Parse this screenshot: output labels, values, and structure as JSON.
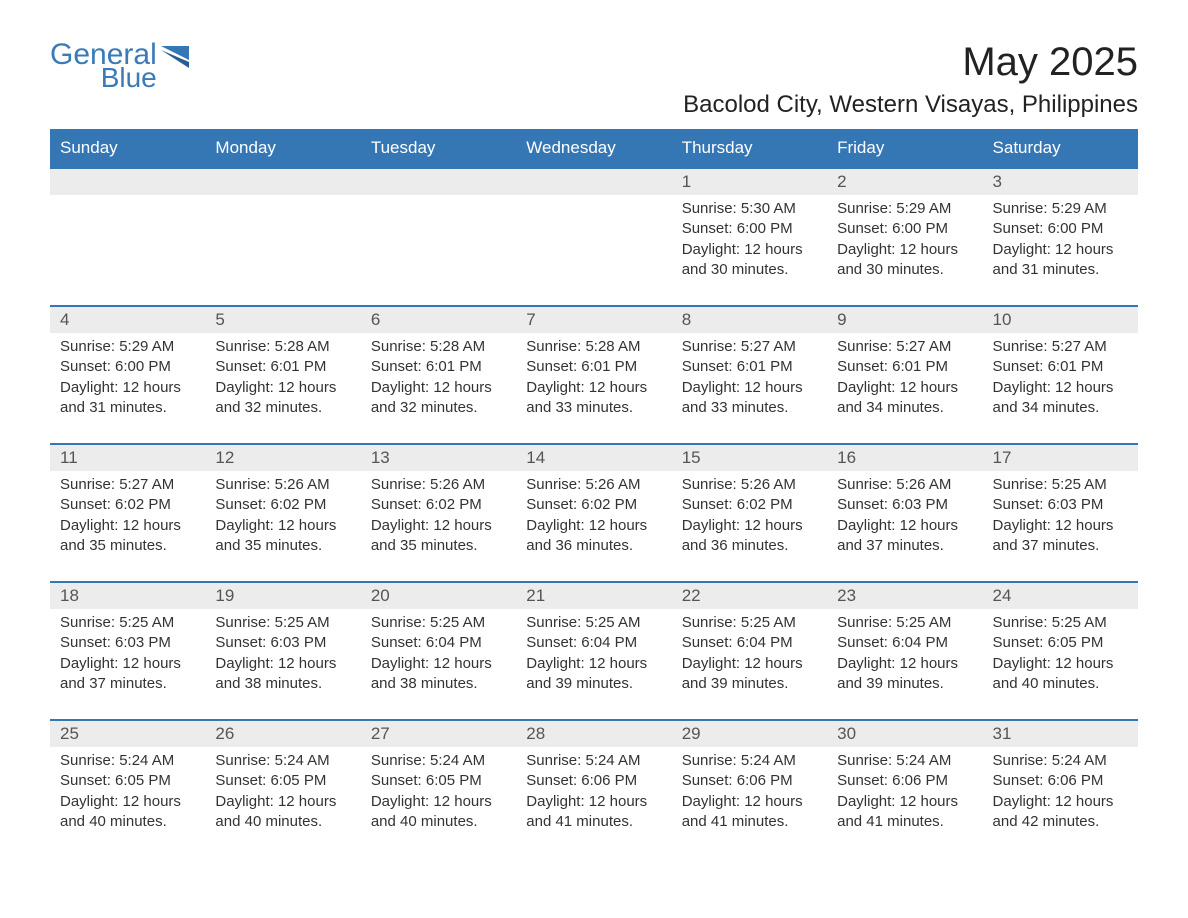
{
  "logo": {
    "main": "General",
    "sub": "Blue"
  },
  "colors": {
    "header_bg": "#3576b5",
    "header_text": "#ffffff",
    "daynum_bg": "#ececec",
    "daynum_border": "#3576b5",
    "body_text": "#333333",
    "logo_color": "#3a7ab8"
  },
  "title": {
    "month": "May 2025",
    "location": "Bacolod City, Western Visayas, Philippines"
  },
  "weekdays": [
    "Sunday",
    "Monday",
    "Tuesday",
    "Wednesday",
    "Thursday",
    "Friday",
    "Saturday"
  ],
  "weeks": [
    [
      null,
      null,
      null,
      null,
      {
        "n": "1",
        "sunrise": "Sunrise: 5:30 AM",
        "sunset": "Sunset: 6:00 PM",
        "daylight": "Daylight: 12 hours and 30 minutes."
      },
      {
        "n": "2",
        "sunrise": "Sunrise: 5:29 AM",
        "sunset": "Sunset: 6:00 PM",
        "daylight": "Daylight: 12 hours and 30 minutes."
      },
      {
        "n": "3",
        "sunrise": "Sunrise: 5:29 AM",
        "sunset": "Sunset: 6:00 PM",
        "daylight": "Daylight: 12 hours and 31 minutes."
      }
    ],
    [
      {
        "n": "4",
        "sunrise": "Sunrise: 5:29 AM",
        "sunset": "Sunset: 6:00 PM",
        "daylight": "Daylight: 12 hours and 31 minutes."
      },
      {
        "n": "5",
        "sunrise": "Sunrise: 5:28 AM",
        "sunset": "Sunset: 6:01 PM",
        "daylight": "Daylight: 12 hours and 32 minutes."
      },
      {
        "n": "6",
        "sunrise": "Sunrise: 5:28 AM",
        "sunset": "Sunset: 6:01 PM",
        "daylight": "Daylight: 12 hours and 32 minutes."
      },
      {
        "n": "7",
        "sunrise": "Sunrise: 5:28 AM",
        "sunset": "Sunset: 6:01 PM",
        "daylight": "Daylight: 12 hours and 33 minutes."
      },
      {
        "n": "8",
        "sunrise": "Sunrise: 5:27 AM",
        "sunset": "Sunset: 6:01 PM",
        "daylight": "Daylight: 12 hours and 33 minutes."
      },
      {
        "n": "9",
        "sunrise": "Sunrise: 5:27 AM",
        "sunset": "Sunset: 6:01 PM",
        "daylight": "Daylight: 12 hours and 34 minutes."
      },
      {
        "n": "10",
        "sunrise": "Sunrise: 5:27 AM",
        "sunset": "Sunset: 6:01 PM",
        "daylight": "Daylight: 12 hours and 34 minutes."
      }
    ],
    [
      {
        "n": "11",
        "sunrise": "Sunrise: 5:27 AM",
        "sunset": "Sunset: 6:02 PM",
        "daylight": "Daylight: 12 hours and 35 minutes."
      },
      {
        "n": "12",
        "sunrise": "Sunrise: 5:26 AM",
        "sunset": "Sunset: 6:02 PM",
        "daylight": "Daylight: 12 hours and 35 minutes."
      },
      {
        "n": "13",
        "sunrise": "Sunrise: 5:26 AM",
        "sunset": "Sunset: 6:02 PM",
        "daylight": "Daylight: 12 hours and 35 minutes."
      },
      {
        "n": "14",
        "sunrise": "Sunrise: 5:26 AM",
        "sunset": "Sunset: 6:02 PM",
        "daylight": "Daylight: 12 hours and 36 minutes."
      },
      {
        "n": "15",
        "sunrise": "Sunrise: 5:26 AM",
        "sunset": "Sunset: 6:02 PM",
        "daylight": "Daylight: 12 hours and 36 minutes."
      },
      {
        "n": "16",
        "sunrise": "Sunrise: 5:26 AM",
        "sunset": "Sunset: 6:03 PM",
        "daylight": "Daylight: 12 hours and 37 minutes."
      },
      {
        "n": "17",
        "sunrise": "Sunrise: 5:25 AM",
        "sunset": "Sunset: 6:03 PM",
        "daylight": "Daylight: 12 hours and 37 minutes."
      }
    ],
    [
      {
        "n": "18",
        "sunrise": "Sunrise: 5:25 AM",
        "sunset": "Sunset: 6:03 PM",
        "daylight": "Daylight: 12 hours and 37 minutes."
      },
      {
        "n": "19",
        "sunrise": "Sunrise: 5:25 AM",
        "sunset": "Sunset: 6:03 PM",
        "daylight": "Daylight: 12 hours and 38 minutes."
      },
      {
        "n": "20",
        "sunrise": "Sunrise: 5:25 AM",
        "sunset": "Sunset: 6:04 PM",
        "daylight": "Daylight: 12 hours and 38 minutes."
      },
      {
        "n": "21",
        "sunrise": "Sunrise: 5:25 AM",
        "sunset": "Sunset: 6:04 PM",
        "daylight": "Daylight: 12 hours and 39 minutes."
      },
      {
        "n": "22",
        "sunrise": "Sunrise: 5:25 AM",
        "sunset": "Sunset: 6:04 PM",
        "daylight": "Daylight: 12 hours and 39 minutes."
      },
      {
        "n": "23",
        "sunrise": "Sunrise: 5:25 AM",
        "sunset": "Sunset: 6:04 PM",
        "daylight": "Daylight: 12 hours and 39 minutes."
      },
      {
        "n": "24",
        "sunrise": "Sunrise: 5:25 AM",
        "sunset": "Sunset: 6:05 PM",
        "daylight": "Daylight: 12 hours and 40 minutes."
      }
    ],
    [
      {
        "n": "25",
        "sunrise": "Sunrise: 5:24 AM",
        "sunset": "Sunset: 6:05 PM",
        "daylight": "Daylight: 12 hours and 40 minutes."
      },
      {
        "n": "26",
        "sunrise": "Sunrise: 5:24 AM",
        "sunset": "Sunset: 6:05 PM",
        "daylight": "Daylight: 12 hours and 40 minutes."
      },
      {
        "n": "27",
        "sunrise": "Sunrise: 5:24 AM",
        "sunset": "Sunset: 6:05 PM",
        "daylight": "Daylight: 12 hours and 40 minutes."
      },
      {
        "n": "28",
        "sunrise": "Sunrise: 5:24 AM",
        "sunset": "Sunset: 6:06 PM",
        "daylight": "Daylight: 12 hours and 41 minutes."
      },
      {
        "n": "29",
        "sunrise": "Sunrise: 5:24 AM",
        "sunset": "Sunset: 6:06 PM",
        "daylight": "Daylight: 12 hours and 41 minutes."
      },
      {
        "n": "30",
        "sunrise": "Sunrise: 5:24 AM",
        "sunset": "Sunset: 6:06 PM",
        "daylight": "Daylight: 12 hours and 41 minutes."
      },
      {
        "n": "31",
        "sunrise": "Sunrise: 5:24 AM",
        "sunset": "Sunset: 6:06 PM",
        "daylight": "Daylight: 12 hours and 42 minutes."
      }
    ]
  ]
}
